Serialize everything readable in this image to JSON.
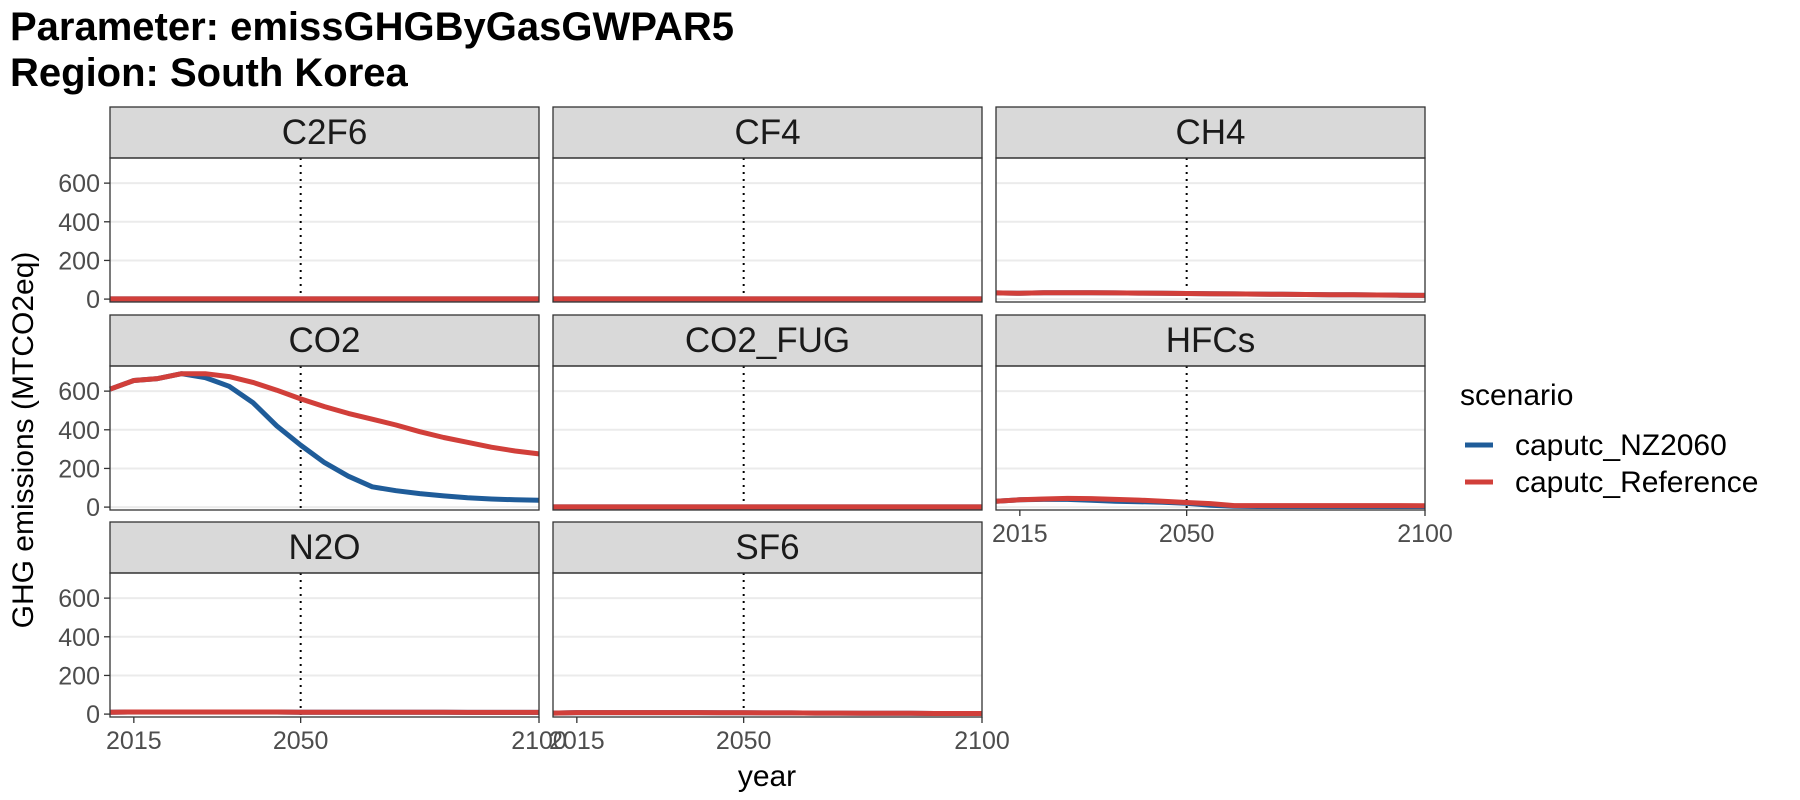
{
  "title_line1": "Parameter: emissGHGByGasGWPAR5",
  "title_line2": "Region: South Korea",
  "chart_data": {
    "type": "line",
    "facet_type": "wrap",
    "xlabel": "year",
    "ylabel": "GHG emissions (MTCO2eq)",
    "xlim": [
      2010,
      2100
    ],
    "ylim": [
      -15,
      730
    ],
    "x_ticks": [
      2015,
      2050,
      2100
    ],
    "y_ticks": [
      0,
      200,
      400,
      600
    ],
    "reference_line_x": 2050,
    "legend": {
      "title": "scenario",
      "position": "right",
      "entries": [
        {
          "name": "caputc_NZ2060",
          "color": "#1f5c99"
        },
        {
          "name": "caputc_Reference",
          "color": "#d13f3a"
        }
      ]
    },
    "colors": {
      "caputc_NZ2060": "#1f5c99",
      "caputc_Reference": "#d13f3a",
      "strip_fill": "#d9d9d9",
      "grid": "#ebebeb",
      "border": "#333333",
      "vline": "#000000"
    },
    "years": [
      2010,
      2015,
      2020,
      2025,
      2030,
      2035,
      2040,
      2045,
      2050,
      2055,
      2060,
      2065,
      2070,
      2075,
      2080,
      2085,
      2090,
      2095,
      2100
    ],
    "panels": [
      {
        "gas": "C2F6",
        "series": [
          {
            "name": "caputc_NZ2060",
            "values": [
              1,
              1,
              1,
              1,
              1,
              1,
              1,
              1,
              1,
              1,
              1,
              1,
              1,
              1,
              1,
              1,
              1,
              1,
              1
            ]
          },
          {
            "name": "caputc_Reference",
            "values": [
              1,
              1,
              1,
              1,
              1,
              1,
              1,
              1,
              1,
              1,
              1,
              1,
              1,
              1,
              1,
              1,
              1,
              1,
              1
            ]
          }
        ]
      },
      {
        "gas": "CF4",
        "series": [
          {
            "name": "caputc_NZ2060",
            "values": [
              1,
              1,
              1,
              1,
              1,
              1,
              1,
              1,
              1,
              1,
              1,
              1,
              1,
              1,
              1,
              1,
              1,
              1,
              1
            ]
          },
          {
            "name": "caputc_Reference",
            "values": [
              1,
              1,
              1,
              1,
              1,
              1,
              1,
              1,
              1,
              1,
              1,
              1,
              1,
              1,
              1,
              1,
              1,
              1,
              1
            ]
          }
        ]
      },
      {
        "gas": "CH4",
        "series": [
          {
            "name": "caputc_NZ2060",
            "values": [
              32,
              30,
              33,
              33,
              33,
              32,
              31,
              30,
              29,
              28,
              27,
              26,
              25,
              24,
              23,
              22,
              21,
              20,
              19
            ]
          },
          {
            "name": "caputc_Reference",
            "values": [
              32,
              30,
              33,
              33,
              33,
              32,
              31,
              30,
              29,
              28,
              27,
              26,
              25,
              24,
              23,
              22,
              21,
              20,
              19
            ]
          }
        ]
      },
      {
        "gas": "CO2",
        "series": [
          {
            "name": "caputc_NZ2060",
            "values": [
              610,
              655,
              665,
              690,
              670,
              625,
              540,
              420,
              320,
              230,
              160,
              105,
              85,
              70,
              58,
              48,
              42,
              38,
              35
            ]
          },
          {
            "name": "caputc_Reference",
            "values": [
              610,
              655,
              665,
              690,
              690,
              675,
              645,
              605,
              560,
              520,
              485,
              455,
              425,
              390,
              360,
              335,
              310,
              290,
              275
            ]
          }
        ]
      },
      {
        "gas": "CO2_FUG",
        "series": [
          {
            "name": "caputc_NZ2060",
            "values": [
              1,
              1,
              1,
              1,
              1,
              1,
              1,
              1,
              1,
              1,
              1,
              1,
              1,
              1,
              1,
              1,
              1,
              1,
              1
            ]
          },
          {
            "name": "caputc_Reference",
            "values": [
              1,
              1,
              1,
              1,
              1,
              1,
              1,
              1,
              1,
              1,
              1,
              1,
              1,
              1,
              1,
              1,
              1,
              1,
              1
            ]
          }
        ]
      },
      {
        "gas": "HFCs",
        "series": [
          {
            "name": "caputc_NZ2060",
            "values": [
              30,
              38,
              40,
              40,
              35,
              30,
              28,
              25,
              20,
              10,
              4,
              3,
              3,
              3,
              3,
              3,
              3,
              3,
              3
            ]
          },
          {
            "name": "caputc_Reference",
            "values": [
              30,
              38,
              42,
              45,
              44,
              40,
              36,
              30,
              24,
              18,
              8,
              8,
              8,
              8,
              8,
              8,
              8,
              8,
              7
            ]
          }
        ]
      },
      {
        "gas": "N2O",
        "series": [
          {
            "name": "caputc_NZ2060",
            "values": [
              10,
              11,
              11,
              11,
              11,
              11,
              11,
              11,
              10,
              10,
              10,
              10,
              10,
              10,
              10,
              9,
              9,
              9,
              9
            ]
          },
          {
            "name": "caputc_Reference",
            "values": [
              10,
              11,
              11,
              11,
              11,
              11,
              11,
              11,
              10,
              10,
              10,
              10,
              10,
              10,
              10,
              9,
              9,
              9,
              9
            ]
          }
        ]
      },
      {
        "gas": "SF6",
        "series": [
          {
            "name": "caputc_NZ2060",
            "values": [
              5,
              8,
              8,
              8,
              8,
              8,
              8,
              7,
              7,
              6,
              6,
              5,
              5,
              4,
              4,
              4,
              3,
              3,
              3
            ]
          },
          {
            "name": "caputc_Reference",
            "values": [
              5,
              8,
              8,
              8,
              8,
              8,
              8,
              7,
              7,
              6,
              6,
              5,
              5,
              4,
              4,
              4,
              3,
              3,
              3
            ]
          }
        ]
      }
    ]
  }
}
